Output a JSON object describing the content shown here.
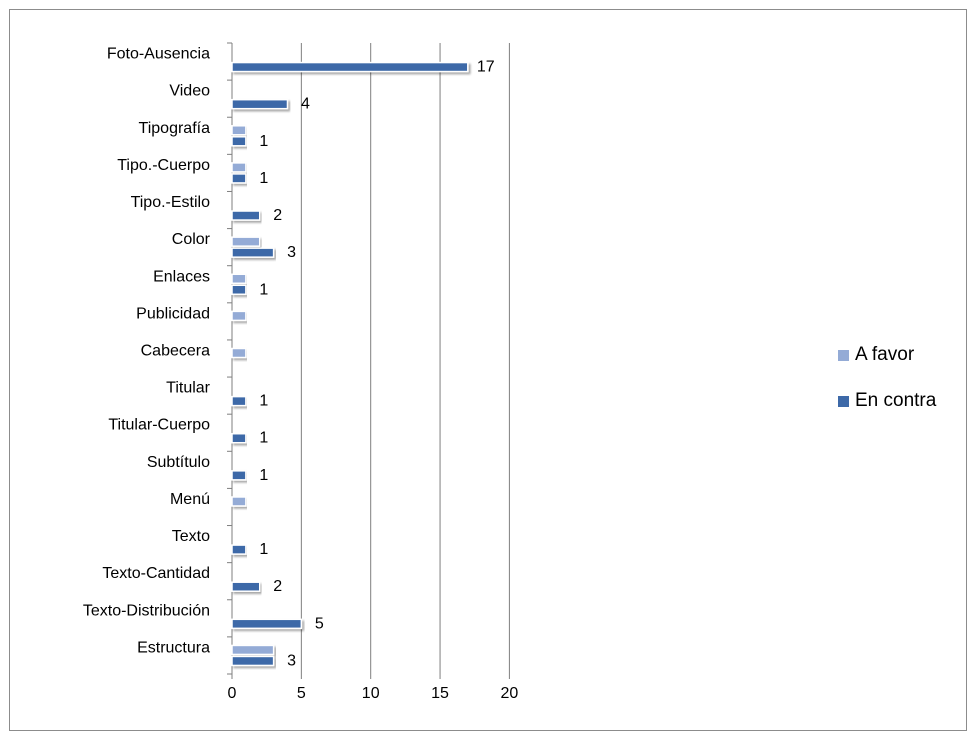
{
  "chart_data": {
    "type": "bar",
    "orientation": "horizontal",
    "categories": [
      "Foto-Ausencia",
      "Video",
      "Tipografía",
      "Tipo.-Cuerpo",
      "Tipo.-Estilo",
      "Color",
      "Enlaces",
      "Publicidad",
      "Cabecera",
      "Titular",
      "Titular-Cuerpo",
      "Subtítulo",
      "Menú",
      "Texto",
      "Texto-Cantidad",
      "Texto-Distribución",
      "Estructura"
    ],
    "series": [
      {
        "name": "A favor",
        "color": "#94abd6",
        "values": [
          0,
          0,
          1,
          1,
          0,
          2,
          1,
          1,
          1,
          0,
          0,
          0,
          1,
          0,
          0,
          0,
          3
        ]
      },
      {
        "name": "En contra",
        "color": "#3d69a8",
        "values": [
          17,
          4,
          1,
          1,
          2,
          3,
          1,
          0,
          0,
          1,
          1,
          1,
          0,
          1,
          2,
          5,
          3
        ]
      }
    ],
    "data_labels": [
      "17",
      "4",
      "1",
      "1",
      "2",
      "3",
      "1",
      "",
      "",
      "1",
      "1",
      "1",
      "",
      "1",
      "2",
      "5",
      "3"
    ],
    "xticks": [
      "0",
      "5",
      "10",
      "15",
      "20"
    ],
    "xlim": [
      0,
      20
    ],
    "grid": "vertical major gridlines",
    "legend_position": "right"
  }
}
